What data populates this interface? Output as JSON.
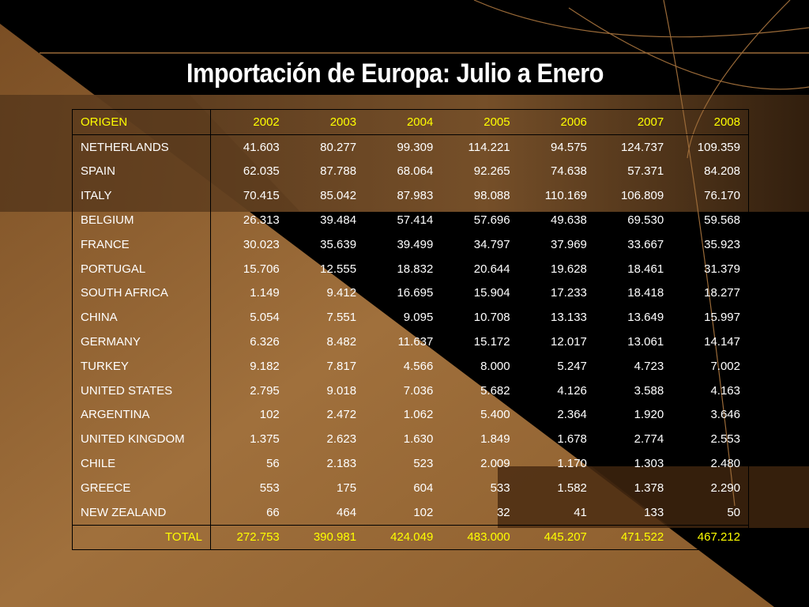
{
  "slide": {
    "title": "Importación de Europa: Julio a Enero"
  },
  "colors": {
    "background": "#000000",
    "accent_brown": "#9a6a38",
    "header_text": "#ffff00",
    "body_text": "#ffffff"
  },
  "table": {
    "header": [
      "ORIGEN",
      "2002",
      "2003",
      "2004",
      "2005",
      "2006",
      "2007",
      "2008"
    ],
    "rows": [
      [
        "NETHERLANDS",
        "41.603",
        "80.277",
        "99.309",
        "114.221",
        "94.575",
        "124.737",
        "109.359"
      ],
      [
        "SPAIN",
        "62.035",
        "87.788",
        "68.064",
        "92.265",
        "74.638",
        "57.371",
        "84.208"
      ],
      [
        "ITALY",
        "70.415",
        "85.042",
        "87.983",
        "98.088",
        "110.169",
        "106.809",
        "76.170"
      ],
      [
        "BELGIUM",
        "26.313",
        "39.484",
        "57.414",
        "57.696",
        "49.638",
        "69.530",
        "59.568"
      ],
      [
        "FRANCE",
        "30.023",
        "35.639",
        "39.499",
        "34.797",
        "37.969",
        "33.667",
        "35.923"
      ],
      [
        "PORTUGAL",
        "15.706",
        "12.555",
        "18.832",
        "20.644",
        "19.628",
        "18.461",
        "31.379"
      ],
      [
        "SOUTH AFRICA",
        "1.149",
        "9.412",
        "16.695",
        "15.904",
        "17.233",
        "18.418",
        "18.277"
      ],
      [
        "CHINA",
        "5.054",
        "7.551",
        "9.095",
        "10.708",
        "13.133",
        "13.649",
        "15.997"
      ],
      [
        "GERMANY",
        "6.326",
        "8.482",
        "11.637",
        "15.172",
        "12.017",
        "13.061",
        "14.147"
      ],
      [
        "TURKEY",
        "9.182",
        "7.817",
        "4.566",
        "8.000",
        "5.247",
        "4.723",
        "7.002"
      ],
      [
        "UNITED STATES",
        "2.795",
        "9.018",
        "7.036",
        "5.682",
        "4.126",
        "3.588",
        "4.163"
      ],
      [
        "ARGENTINA",
        "102",
        "2.472",
        "1.062",
        "5.400",
        "2.364",
        "1.920",
        "3.646"
      ],
      [
        "UNITED KINGDOM",
        "1.375",
        "2.623",
        "1.630",
        "1.849",
        "1.678",
        "2.774",
        "2.553"
      ],
      [
        "CHILE",
        "56",
        "2.183",
        "523",
        "2.009",
        "1.170",
        "1.303",
        "2.480"
      ],
      [
        "GREECE",
        "553",
        "175",
        "604",
        "533",
        "1.582",
        "1.378",
        "2.290"
      ],
      [
        "NEW ZEALAND",
        "66",
        "464",
        "102",
        "32",
        "41",
        "133",
        "50"
      ]
    ],
    "total": [
      "TOTAL",
      "272.753",
      "390.981",
      "424.049",
      "483.000",
      "445.207",
      "471.522",
      "467.212"
    ]
  }
}
